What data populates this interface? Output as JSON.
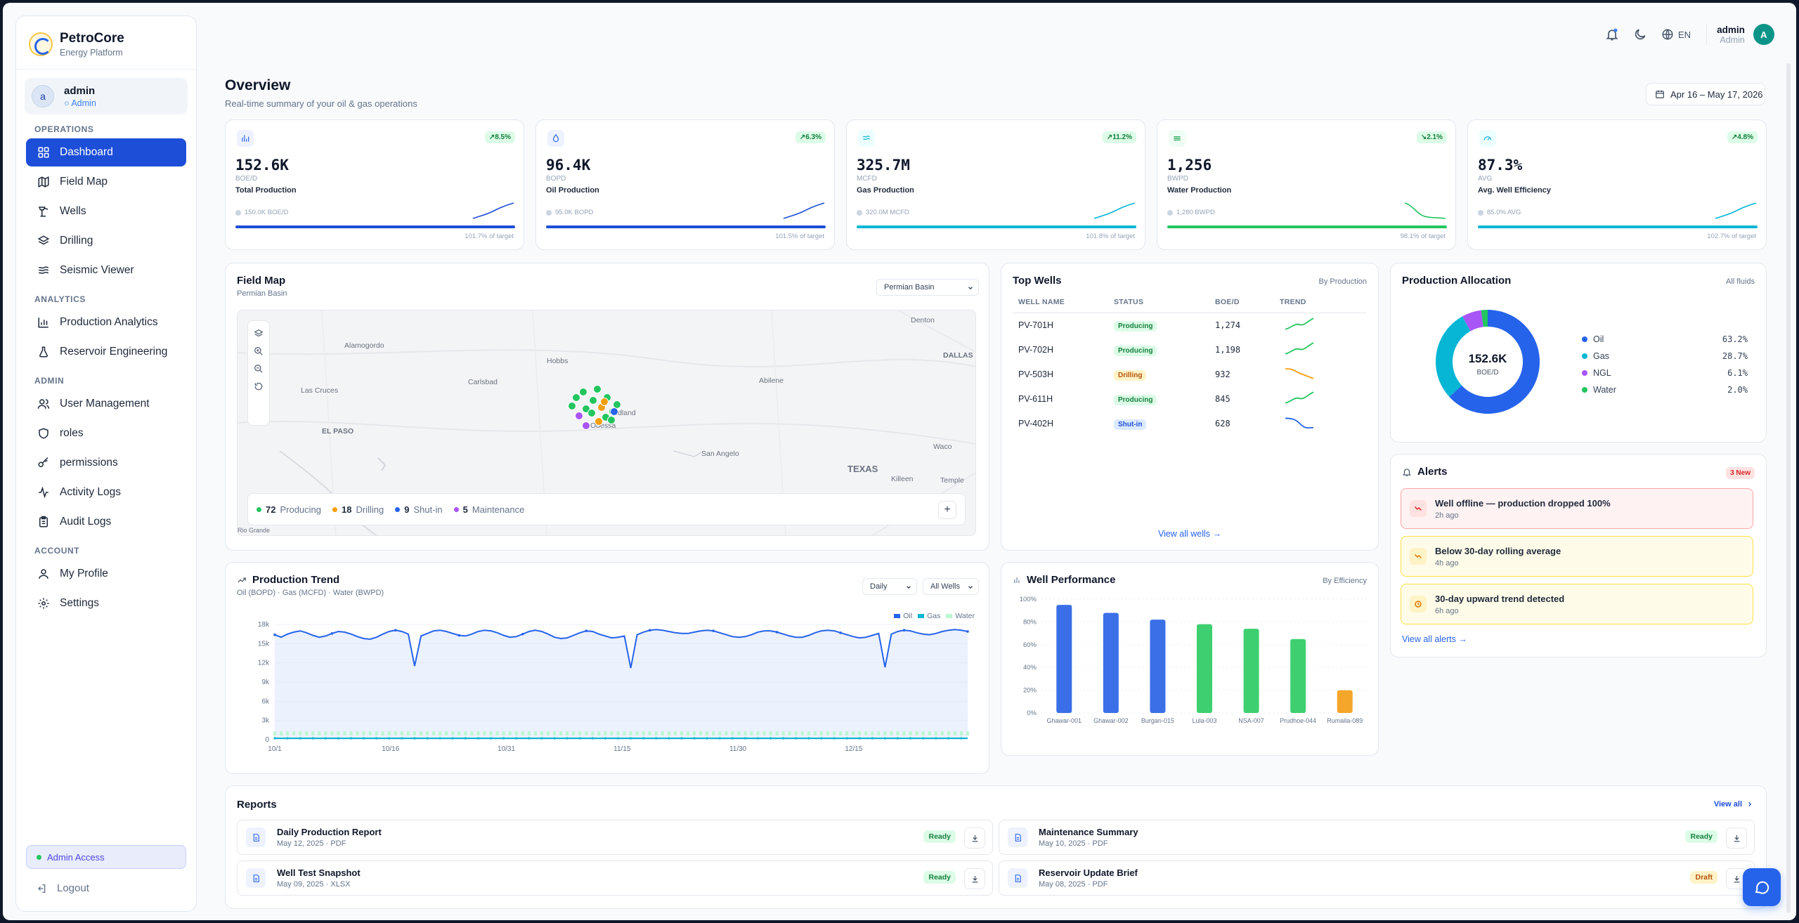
{
  "brand": {
    "name": "PetroCore",
    "sub": "Energy Platform"
  },
  "user_card": {
    "initial": "a",
    "name": "admin",
    "role": "Admin"
  },
  "nav": {
    "operations_title": "OPERATIONS",
    "operations": [
      {
        "label": "Dashboard",
        "icon": "grid-icon",
        "active": true
      },
      {
        "label": "Field Map",
        "icon": "map-icon"
      },
      {
        "label": "Wells",
        "icon": "pump-icon"
      },
      {
        "label": "Drilling",
        "icon": "layers-icon"
      },
      {
        "label": "Seismic Viewer",
        "icon": "waves-icon"
      }
    ],
    "analytics_title": "ANALYTICS",
    "analytics": [
      {
        "label": "Production Analytics",
        "icon": "bar-chart-icon"
      },
      {
        "label": "Reservoir Engineering",
        "icon": "flask-icon"
      }
    ],
    "admin_title": "ADMIN",
    "admin": [
      {
        "label": "User Management",
        "icon": "users-icon"
      },
      {
        "label": "roles",
        "icon": "shield-icon"
      },
      {
        "label": "permissions",
        "icon": "key-icon"
      },
      {
        "label": "Activity Logs",
        "icon": "activity-icon"
      },
      {
        "label": "Audit Logs",
        "icon": "clipboard-icon"
      }
    ],
    "account_title": "ACCOUNT",
    "account": [
      {
        "label": "My Profile",
        "icon": "user-icon"
      },
      {
        "label": "Settings",
        "icon": "gear-icon"
      }
    ],
    "admin_access": "Admin Access",
    "logout": "Logout"
  },
  "topbar": {
    "lang": "EN",
    "user_name": "admin",
    "user_role": "Admin",
    "initial": "A"
  },
  "overview": {
    "title": "Overview",
    "subtitle": "Real-time summary of your oil & gas operations",
    "date_range": "Apr 16 – May 17, 2026"
  },
  "kpis": [
    {
      "value": "152.6K",
      "unit": "BOE/D",
      "label": "Total Production",
      "change": "8.5%",
      "prev": "150.0K BOE/D",
      "pct": "101.7% of target",
      "color": "#1d4ed8",
      "trend": "up"
    },
    {
      "value": "96.4K",
      "unit": "BOPD",
      "label": "Oil Production",
      "change": "6.3%",
      "prev": "95.0K BOPD",
      "pct": "101.5% of target",
      "color": "#1d4ed8",
      "trend": "up"
    },
    {
      "value": "325.7M",
      "unit": "MCFD",
      "label": "Gas Production",
      "change": "11.2%",
      "prev": "320.0M MCFD",
      "pct": "101.8% of target",
      "color": "#06b6d4",
      "trend": "up"
    },
    {
      "value": "1,256",
      "unit": "BWPD",
      "label": "Water Production",
      "change": "2.1%",
      "prev": "1,280 BWPD",
      "pct": "98.1% of target",
      "color": "#22c55e",
      "trend": "down"
    },
    {
      "value": "87.3%",
      "unit": "AVG",
      "label": "Avg. Well Efficiency",
      "change": "4.8%",
      "prev": "85.0% AVG",
      "pct": "102.7% of target",
      "color": "#06b6d4",
      "trend": "up"
    }
  ],
  "field_map": {
    "title": "Field Map",
    "subtitle": "Permian Basin",
    "select": "Permian Basin",
    "places": [
      "Denton",
      "Alamogordo",
      "Hobbs",
      "DALLAS",
      "Las Cruces",
      "Carlsbad",
      "Abilene",
      "Midland",
      "Odessa",
      "EL PASO",
      "San Angelo",
      "Waco",
      "TEXAS",
      "Killeen",
      "Temple",
      "Rio Grande"
    ],
    "legend": [
      {
        "count": "72",
        "label": "Producing",
        "color": "#22c55e"
      },
      {
        "count": "18",
        "label": "Drilling",
        "color": "#f59e0b"
      },
      {
        "count": "9",
        "label": "Shut-in",
        "color": "#2563eb"
      },
      {
        "count": "5",
        "label": "Maintenance",
        "color": "#a855f7"
      }
    ]
  },
  "top_wells": {
    "title": "Top Wells",
    "sort": "By Production",
    "headers": [
      "WELL NAME",
      "STATUS",
      "BOE/D",
      "TREND"
    ],
    "rows": [
      {
        "name": "PV-701H",
        "status": "Producing",
        "boe": "1,274"
      },
      {
        "name": "PV-702H",
        "status": "Producing",
        "boe": "1,198"
      },
      {
        "name": "PV-503H",
        "status": "Drilling",
        "boe": "932"
      },
      {
        "name": "PV-611H",
        "status": "Producing",
        "boe": "845"
      },
      {
        "name": "PV-402H",
        "status": "Shut-in",
        "boe": "628"
      }
    ],
    "link": "View all wells →"
  },
  "allocation": {
    "title": "Production Allocation",
    "scope": "All fluids",
    "center_value": "152.6K",
    "center_unit": "BOE/D",
    "items": [
      {
        "label": "Oil",
        "value": "63.2%",
        "color": "#2563eb"
      },
      {
        "label": "Gas",
        "value": "28.7%",
        "color": "#06b6d4"
      },
      {
        "label": "NGL",
        "value": "6.1%",
        "color": "#a855f7"
      },
      {
        "label": "Water",
        "value": "2.0%",
        "color": "#22c55e"
      }
    ]
  },
  "alerts": {
    "title": "Alerts",
    "badge": "3 New",
    "items": [
      {
        "title": "Well offline — production dropped 100%",
        "time": "2h ago",
        "tone": "red"
      },
      {
        "title": "Below 30-day rolling average",
        "time": "4h ago",
        "tone": "yellow"
      },
      {
        "title": "30-day upward trend detected",
        "time": "6h ago",
        "tone": "yellow"
      }
    ],
    "link": "View all alerts →"
  },
  "trend": {
    "title": "Production Trend",
    "subtitle": "Oil (BOPD) · Gas (MCFD) · Water (BWPD)",
    "select_period": "Daily",
    "select_wells": "All Wells"
  },
  "chart_data": [
    {
      "type": "line",
      "title": "Production Trend",
      "x_ticks": [
        "10/1",
        "10/16",
        "10/31",
        "11/15",
        "11/30",
        "12/15"
      ],
      "y_ticks": [
        "0",
        "3k",
        "6k",
        "9k",
        "12k",
        "15k",
        "18k"
      ],
      "ylim": [
        0,
        18000
      ],
      "series": [
        {
          "name": "Oil",
          "color": "#2563eb",
          "values": [
            16400,
            16000,
            16500,
            16800,
            17000,
            16700,
            16300,
            16000,
            16200,
            16600,
            16900,
            16800,
            16500,
            16100,
            15800,
            15700,
            16000,
            16500,
            16900,
            17100,
            16900,
            16500,
            11500,
            16200,
            16600,
            17000,
            17100,
            16900,
            16600,
            16300,
            16200,
            16500,
            16900,
            17100,
            17000,
            16700,
            16300,
            16000,
            16100,
            16500,
            16900,
            17100,
            16900,
            16500,
            16000,
            15800,
            15900,
            16300,
            16700,
            17000,
            16900,
            16500,
            16200,
            15900,
            16000,
            16200,
            11200,
            16400,
            16800,
            17100,
            17200,
            17100,
            16900,
            16700,
            16600,
            16600,
            16800,
            17000,
            17100,
            17000,
            16700,
            16400,
            16100,
            16000,
            16100,
            16400,
            16800,
            17000,
            17000,
            16800,
            16500,
            16200,
            16000,
            16000,
            16300,
            16700,
            17000,
            17100,
            17000,
            16700,
            16400,
            16100,
            15900,
            16000,
            16300,
            16600,
            11300,
            16500,
            16900,
            17100,
            17000,
            16700,
            16500,
            16400,
            16600,
            16900,
            17100,
            17200,
            17100,
            16900
          ]
        },
        {
          "name": "Gas",
          "color": "#06b6d4",
          "values": []
        },
        {
          "name": "Water",
          "color": "#bbf7d0",
          "values": []
        }
      ]
    },
    {
      "type": "bar",
      "title": "Well Performance",
      "categories": [
        "Ghawar-001",
        "Ghawar-002",
        "Burgan-015",
        "Lula-003",
        "NSA-007",
        "Prudhoe-044",
        "Rumaila-089"
      ],
      "values": [
        95,
        88,
        82,
        78,
        74,
        65,
        20
      ],
      "colors": [
        "#3b6fe8",
        "#3b6fe8",
        "#3b6fe8",
        "#3ecf70",
        "#3ecf70",
        "#3ecf70",
        "#f4a62a"
      ],
      "y_ticks": [
        "0%",
        "20%",
        "40%",
        "60%",
        "80%",
        "100%"
      ],
      "ylim": [
        0,
        100
      ]
    }
  ],
  "well_perf": {
    "title": "Well Performance",
    "sort": "By Efficiency"
  },
  "reports": {
    "title": "Reports",
    "link": "View all",
    "items": [
      {
        "title": "Daily Production Report",
        "meta": "May 12, 2025 · PDF",
        "status": "Ready"
      },
      {
        "title": "Maintenance Summary",
        "meta": "May 10, 2025 · PDF",
        "status": "Ready"
      },
      {
        "title": "Well Test Snapshot",
        "meta": "May 09, 2025 · XLSX",
        "status": "Ready"
      },
      {
        "title": "Reservoir Update Brief",
        "meta": "May 08, 2025 · PDF",
        "status": "Draft"
      }
    ]
  }
}
